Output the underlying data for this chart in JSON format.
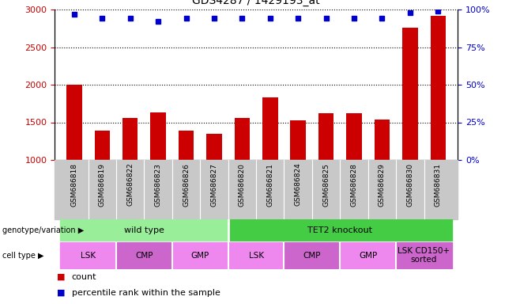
{
  "title": "GDS4287 / 1429193_at",
  "samples": [
    "GSM686818",
    "GSM686819",
    "GSM686822",
    "GSM686823",
    "GSM686826",
    "GSM686827",
    "GSM686820",
    "GSM686821",
    "GSM686824",
    "GSM686825",
    "GSM686828",
    "GSM686829",
    "GSM686830",
    "GSM686831"
  ],
  "counts": [
    2000,
    1390,
    1560,
    1630,
    1390,
    1345,
    1560,
    1830,
    1530,
    1620,
    1620,
    1540,
    2760,
    2920
  ],
  "percentile_ranks": [
    97,
    94,
    94,
    92,
    94,
    94,
    94,
    94,
    94,
    94,
    94,
    94,
    98,
    99
  ],
  "ylim_left": [
    1000,
    3000
  ],
  "ylim_right": [
    0,
    100
  ],
  "yticks_left": [
    1000,
    1500,
    2000,
    2500,
    3000
  ],
  "yticks_right": [
    0,
    25,
    50,
    75,
    100
  ],
  "bar_color": "#cc0000",
  "dot_color": "#0000cc",
  "genotype_groups": [
    {
      "label": "wild type",
      "start": 0,
      "end": 6,
      "color": "#99ee99"
    },
    {
      "label": "TET2 knockout",
      "start": 6,
      "end": 14,
      "color": "#44cc44"
    }
  ],
  "cell_type_groups": [
    {
      "label": "LSK",
      "start": 0,
      "end": 2,
      "color": "#ee88ee"
    },
    {
      "label": "CMP",
      "start": 2,
      "end": 4,
      "color": "#cc66cc"
    },
    {
      "label": "GMP",
      "start": 4,
      "end": 6,
      "color": "#ee88ee"
    },
    {
      "label": "LSK",
      "start": 6,
      "end": 8,
      "color": "#ee88ee"
    },
    {
      "label": "CMP",
      "start": 8,
      "end": 10,
      "color": "#cc66cc"
    },
    {
      "label": "GMP",
      "start": 10,
      "end": 12,
      "color": "#ee88ee"
    },
    {
      "label": "LSK CD150+\nsorted",
      "start": 12,
      "end": 14,
      "color": "#cc66cc"
    }
  ],
  "right_axis_color": "#0000cc",
  "left_axis_color": "#cc0000",
  "legend_count_color": "#cc0000",
  "legend_dot_color": "#0000cc",
  "gray_bg": "#c8c8c8"
}
